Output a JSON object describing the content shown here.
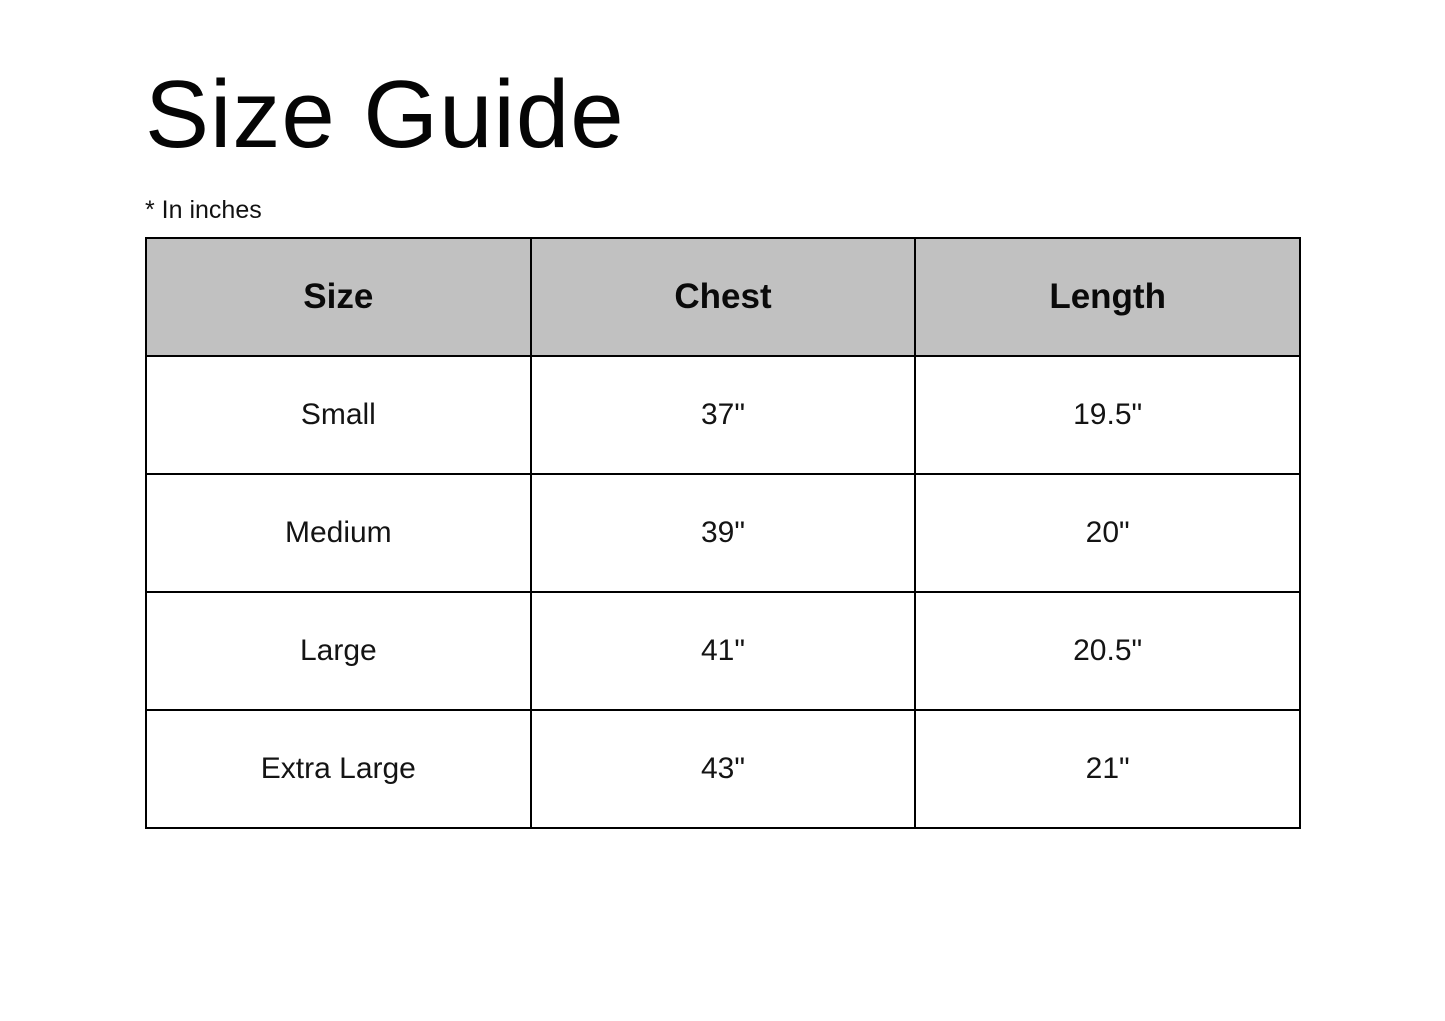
{
  "page": {
    "title": "Size Guide",
    "note": "* In inches"
  },
  "table": {
    "header_bg_color": "#c1c1c1",
    "border_color": "#000000",
    "columns": [
      "Size",
      "Chest",
      "Length"
    ],
    "rows": [
      [
        "Small",
        "37\"",
        "19.5\""
      ],
      [
        "Medium",
        "39\"",
        "20\""
      ],
      [
        "Large",
        "41\"",
        "20.5\""
      ],
      [
        "Extra Large",
        "43\"",
        "21\""
      ]
    ]
  }
}
